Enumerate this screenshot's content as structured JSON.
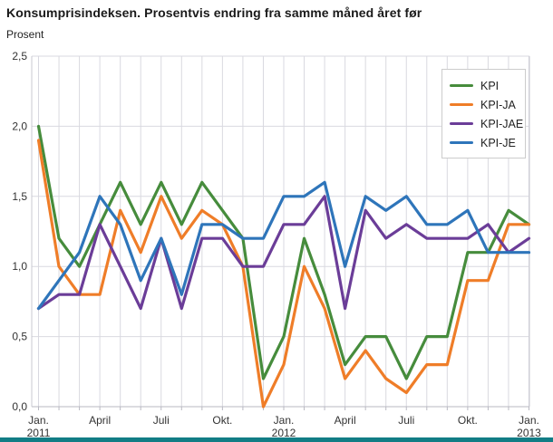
{
  "title": "Konsumprisindeksen. Prosentvis endring fra samme måned året før",
  "subtitle": "Prosent",
  "footer_bar_color": "#127d85",
  "chart_data": {
    "type": "line",
    "title": "Konsumprisindeksen. Prosentvis endring fra samme måned året før",
    "ylabel": "Prosent",
    "ylim": [
      0,
      2.5
    ],
    "grid": true,
    "legend_position": "top-right",
    "n_points": 25,
    "y_tick_labels": [
      "0,0",
      "0,5",
      "1,0",
      "1,5",
      "2,0",
      "2,5"
    ],
    "y_tick_values": [
      0,
      0.5,
      1.0,
      1.5,
      2.0,
      2.5
    ],
    "x_tick_labels": [
      {
        "i": 0,
        "line1": "Jan.",
        "line2": "2011"
      },
      {
        "i": 3,
        "line1": "April",
        "line2": ""
      },
      {
        "i": 6,
        "line1": "Juli",
        "line2": ""
      },
      {
        "i": 9,
        "line1": "Okt.",
        "line2": ""
      },
      {
        "i": 12,
        "line1": "Jan.",
        "line2": "2012"
      },
      {
        "i": 15,
        "line1": "April",
        "line2": ""
      },
      {
        "i": 18,
        "line1": "Juli",
        "line2": ""
      },
      {
        "i": 21,
        "line1": "Okt.",
        "line2": ""
      },
      {
        "i": 24,
        "line1": "Jan.",
        "line2": "2013"
      }
    ],
    "series": [
      {
        "name": "KPI",
        "color": "#468c3c",
        "values": [
          2.0,
          1.2,
          1.0,
          1.3,
          1.6,
          1.3,
          1.6,
          1.3,
          1.6,
          1.4,
          1.2,
          0.2,
          0.5,
          1.2,
          0.8,
          0.3,
          0.5,
          0.5,
          0.2,
          0.5,
          0.5,
          1.1,
          1.1,
          1.4,
          1.3
        ]
      },
      {
        "name": "KPI-JA",
        "color": "#ef7d28",
        "values": [
          1.9,
          1.0,
          0.8,
          0.8,
          1.4,
          1.1,
          1.5,
          1.2,
          1.4,
          1.3,
          1.0,
          0.0,
          0.3,
          1.0,
          0.7,
          0.2,
          0.4,
          0.2,
          0.1,
          0.3,
          0.3,
          0.9,
          0.9,
          1.3,
          1.3
        ]
      },
      {
        "name": "KPI-JAE",
        "color": "#6b3d98",
        "values": [
          0.7,
          0.8,
          0.8,
          1.3,
          1.0,
          0.7,
          1.2,
          0.7,
          1.2,
          1.2,
          1.0,
          1.0,
          1.3,
          1.3,
          1.5,
          0.7,
          1.4,
          1.2,
          1.3,
          1.2,
          1.2,
          1.2,
          1.3,
          1.1,
          1.2
        ]
      },
      {
        "name": "KPI-JE",
        "color": "#2e75ba",
        "values": [
          0.7,
          0.9,
          1.1,
          1.5,
          1.3,
          0.9,
          1.2,
          0.8,
          1.3,
          1.3,
          1.2,
          1.2,
          1.5,
          1.5,
          1.6,
          1.0,
          1.5,
          1.4,
          1.5,
          1.3,
          1.3,
          1.4,
          1.1,
          1.1,
          1.1
        ]
      }
    ]
  }
}
